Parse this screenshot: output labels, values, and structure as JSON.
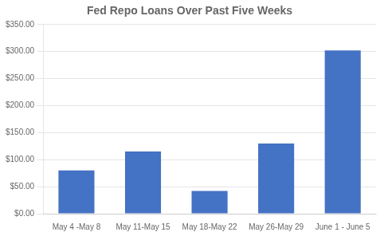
{
  "chart_data": {
    "type": "bar",
    "title": "Fed Repo Loans Over Past Five Weeks",
    "categories": [
      "May 4 -May 8",
      "May 11-May 15",
      "May 18-May 22",
      "May 26-May 29",
      "June 1 - June 5"
    ],
    "values": [
      80,
      115,
      42,
      130,
      302
    ],
    "color": "#4472C4",
    "ylim": [
      0,
      350
    ],
    "yticks": [
      {
        "value": 0,
        "label": "$0.00"
      },
      {
        "value": 50,
        "label": "$50.00"
      },
      {
        "value": 100,
        "label": "$100.00"
      },
      {
        "value": 150,
        "label": "$150.00"
      },
      {
        "value": 200,
        "label": "$200.00"
      },
      {
        "value": 250,
        "label": "$250.00"
      },
      {
        "value": 300,
        "label": "$300.00"
      },
      {
        "value": 350,
        "label": "$350.00"
      }
    ],
    "grid": true
  }
}
